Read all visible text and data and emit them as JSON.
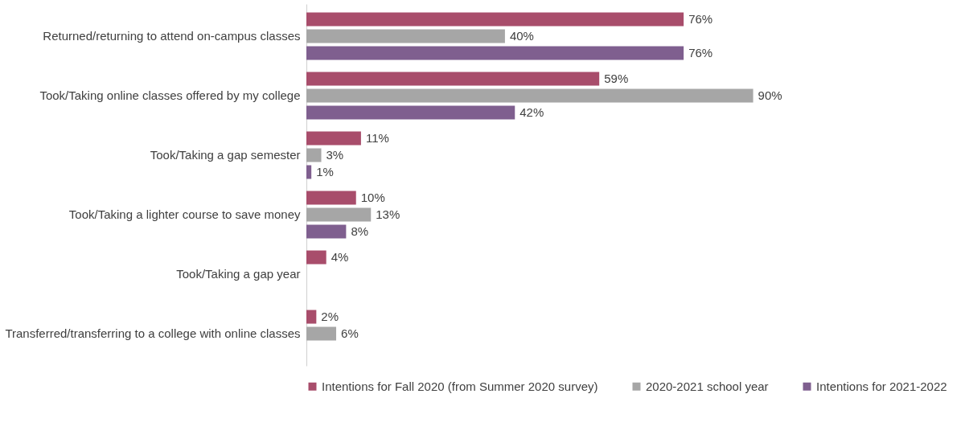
{
  "chart_data": {
    "type": "bar",
    "orientation": "horizontal",
    "legend": "bottom",
    "categories": [
      "Returned/returning to  attend on-campus classes",
      "Took/Taking online classes offered by my college",
      "Took/Taking a gap semester",
      "Took/Taking a lighter course to save money",
      "Took/Taking a gap year",
      "Transferred/transferring to a college with online classes"
    ],
    "series": [
      {
        "name": "Intentions for Fall 2020 (from Summer 2020 survey)",
        "color": "#a84d6b",
        "values": [
          76,
          59,
          11,
          10,
          4,
          2
        ],
        "value_labels": [
          "76%",
          "59%",
          "11%",
          "10%",
          "4%",
          "2%"
        ]
      },
      {
        "name": "2020-2021 school year",
        "color": "#a6a6a6",
        "values": [
          40,
          90,
          3,
          13,
          null,
          6
        ],
        "value_labels": [
          "40%",
          "90%",
          "3%",
          "13%",
          null,
          "6%"
        ]
      },
      {
        "name": "Intentions for 2021-2022",
        "color": "#7f5f8f",
        "values": [
          76,
          42,
          1,
          8,
          null,
          null
        ],
        "value_labels": [
          "76%",
          "42%",
          "1%",
          "8%",
          null,
          null
        ]
      }
    ]
  }
}
